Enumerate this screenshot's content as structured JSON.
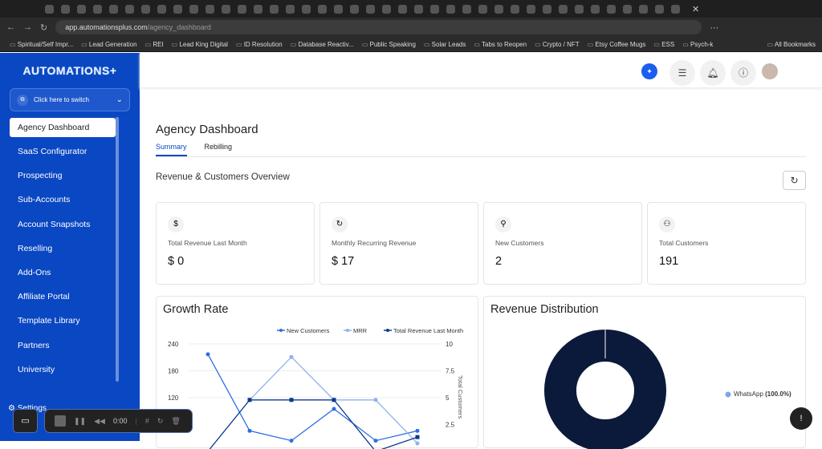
{
  "browser": {
    "url_host": "app.automationsplus.com",
    "url_path": "/agency_dashboard",
    "bookmarks": [
      "Spiritual/Self Impr...",
      "Lead Generation",
      "REI",
      "Lead King Digital",
      "ID Resolution",
      "Database Reactiv...",
      "Public Speaking",
      "Solar Leads",
      "Tabs to Reopen",
      "Crypto / NFT",
      "Etsy Coffee Mugs",
      "ESS",
      "Psych-k"
    ],
    "all_bookmarks": "All Bookmarks"
  },
  "sidebar": {
    "logo": "AUTOMATIONS+",
    "switch_label": "Click here to switch",
    "items": [
      "Agency Dashboard",
      "SaaS Configurator",
      "Prospecting",
      "Sub-Accounts",
      "Account Snapshots",
      "Reselling",
      "Add-Ons",
      "Affiliate Portal",
      "Template Library",
      "Partners",
      "University"
    ],
    "settings": "Settings"
  },
  "page": {
    "title": "Agency Dashboard",
    "tabs": [
      "Summary",
      "Rebilling"
    ],
    "section_title": "Revenue & Customers Overview"
  },
  "cards": [
    {
      "icon": "dollar-icon",
      "label": "Total Revenue Last Month",
      "value": "$ 0"
    },
    {
      "icon": "recurring-icon",
      "label": "Monthly Recurring Revenue",
      "value": "$ 17"
    },
    {
      "icon": "user-plus-icon",
      "label": "New Customers",
      "value": "2"
    },
    {
      "icon": "users-icon",
      "label": "Total Customers",
      "value": "191"
    }
  ],
  "growth": {
    "title": "Growth Rate"
  },
  "distribution": {
    "title": "Revenue Distribution",
    "legend": "WhatsApp",
    "pct": "(100.0%)"
  },
  "recorder": {
    "time": "0:00"
  },
  "chart_data": {
    "type": "line",
    "title": "Growth Rate",
    "ylim_left": [
      0,
      240
    ],
    "yticks_left": [
      "240",
      "180",
      "120"
    ],
    "ylim_right": [
      0,
      10
    ],
    "yticks_right": [
      "10",
      "7.5",
      "5",
      "2.5"
    ],
    "ylabel_right": "Total Customers",
    "legend_placement": "top-right",
    "series": [
      {
        "name": "New Customers",
        "color": "#2f6fe0",
        "values": [
          217,
          46,
          24,
          95,
          24,
          46
        ]
      },
      {
        "name": "MRR",
        "color": "#8fb2ec",
        "values": [
          null,
          115,
          211,
          115,
          115,
          18
        ]
      },
      {
        "name": "Total Revenue Last Month",
        "color": "#0b3a8f",
        "values": [
          0,
          115,
          115,
          115,
          0,
          32
        ]
      }
    ]
  },
  "pie_data": {
    "type": "pie",
    "slices": [
      {
        "label": "WhatsApp",
        "value": 100
      }
    ],
    "color": "#0b1a3a"
  },
  "colors": {
    "sidebar": "#0a47c2",
    "accent": "#0a47c2"
  }
}
